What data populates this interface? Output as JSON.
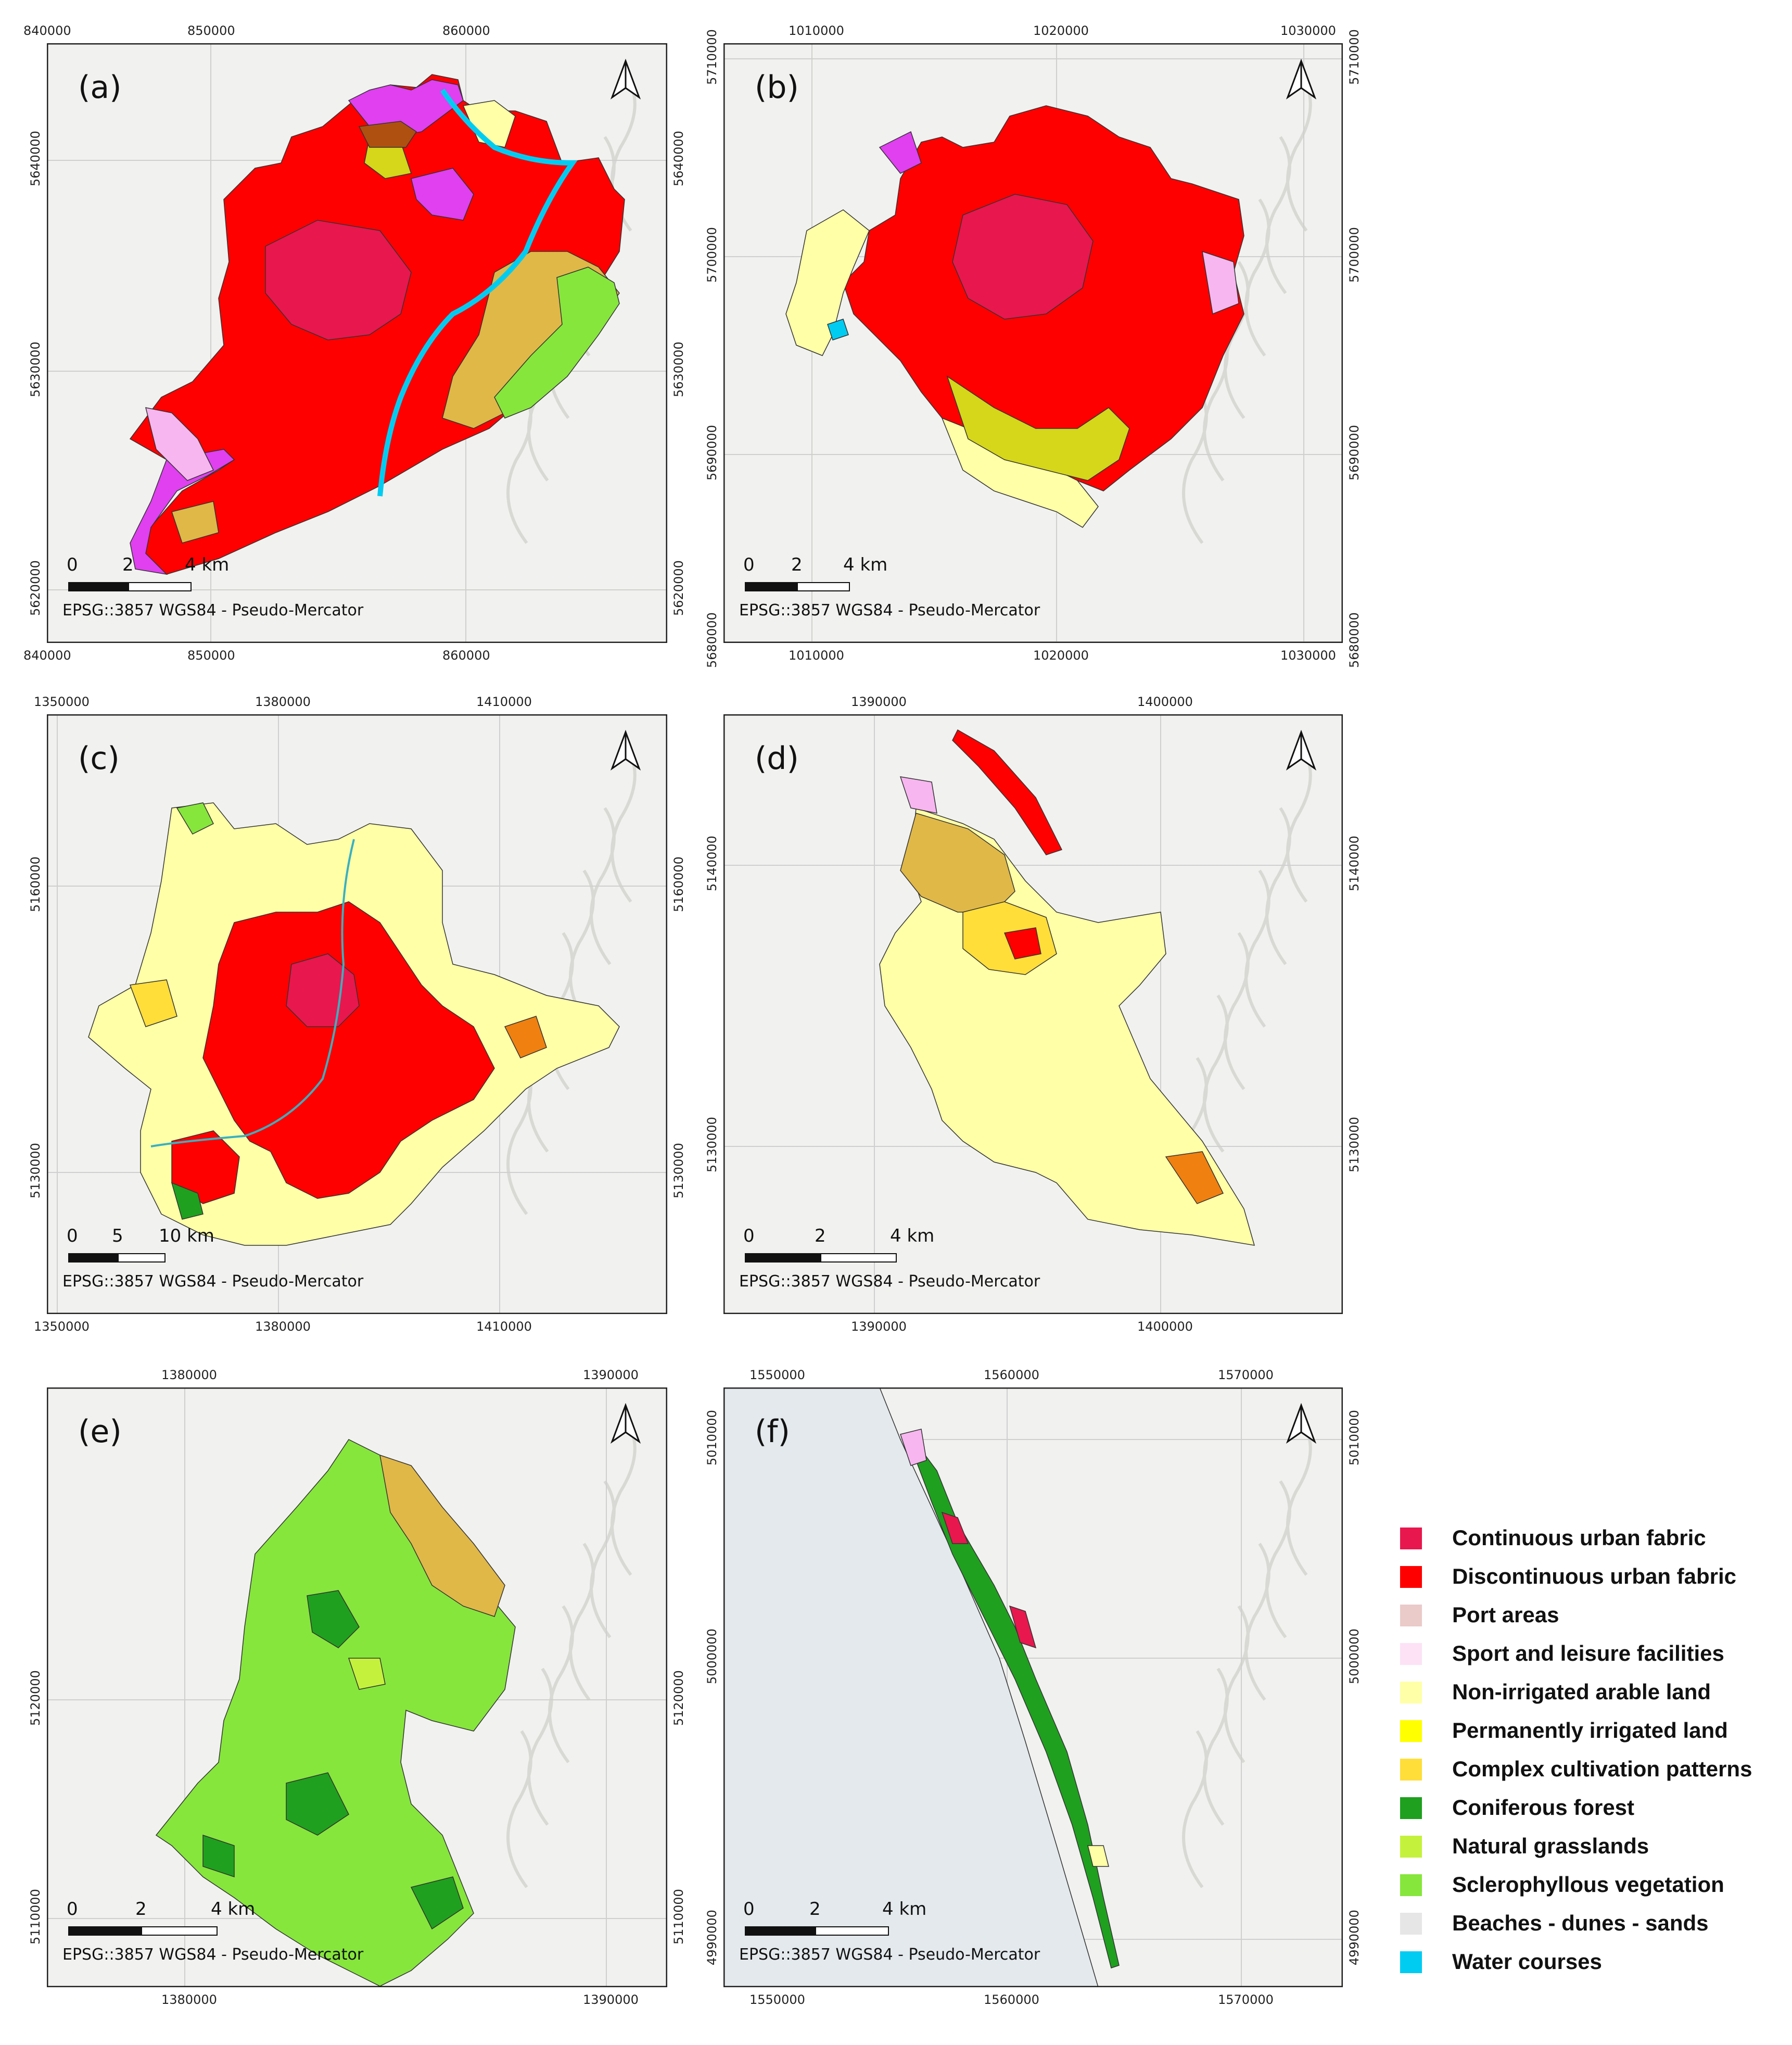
{
  "panels": [
    {
      "label": "(a)",
      "crs": "EPSG::3857 WGS84 - Pseudo-Mercator",
      "x_ticks": [
        "840000",
        "850000",
        "860000"
      ],
      "y_ticks": [
        "5640000",
        "5630000",
        "5620000"
      ],
      "scale": {
        "s0": "0",
        "s1": "2",
        "s2": "4 km"
      }
    },
    {
      "label": "(b)",
      "crs": "EPSG::3857 WGS84 - Pseudo-Mercator",
      "x_ticks": [
        "1010000",
        "1020000",
        "1030000"
      ],
      "y_ticks": [
        "5710000",
        "5700000",
        "5690000",
        "5680000"
      ],
      "scale": {
        "s0": "0",
        "s1": "2",
        "s2": "4 km"
      }
    },
    {
      "label": "(c)",
      "crs": "EPSG::3857 WGS84 - Pseudo-Mercator",
      "x_ticks": [
        "1350000",
        "1380000",
        "1410000"
      ],
      "y_ticks": [
        "5160000",
        "5130000"
      ],
      "scale": {
        "s0": "0",
        "s1": "5",
        "s2": "10 km"
      }
    },
    {
      "label": "(d)",
      "crs": "EPSG::3857 WGS84 - Pseudo-Mercator",
      "x_ticks": [
        "1390000",
        "1400000"
      ],
      "y_ticks": [
        "5140000",
        "5130000"
      ],
      "scale": {
        "s0": "0",
        "s1": "2",
        "s2": "4 km"
      }
    },
    {
      "label": "(e)",
      "crs": "EPSG::3857 WGS84 - Pseudo-Mercator",
      "x_ticks": [
        "1380000",
        "1390000"
      ],
      "y_ticks": [
        "5120000",
        "5110000"
      ],
      "scale": {
        "s0": "0",
        "s1": "2",
        "s2": "4 km"
      }
    },
    {
      "label": "(f)",
      "crs": "EPSG::3857 WGS84 - Pseudo-Mercator",
      "x_ticks": [
        "1550000",
        "1560000",
        "1570000"
      ],
      "y_ticks": [
        "5010000",
        "5000000",
        "4990000"
      ],
      "scale": {
        "s0": "0",
        "s1": "2",
        "s2": "4 km"
      }
    }
  ],
  "legend": [
    {
      "label": "Continuous urban fabric",
      "color": "#e8174e"
    },
    {
      "label": "Discontinuous urban fabric",
      "color": "#ff0000"
    },
    {
      "label": "Port areas",
      "color": "#ebcaca"
    },
    {
      "label": "Sport and leisure facilities",
      "color": "#fde2f6"
    },
    {
      "label": "Non-irrigated arable land",
      "color": "#ffffa8"
    },
    {
      "label": "Permanently irrigated land",
      "color": "#ffff00"
    },
    {
      "label": "Complex cultivation patterns",
      "color": "#ffde3a"
    },
    {
      "label": "Coniferous forest",
      "color": "#1fa01f"
    },
    {
      "label": "Natural grasslands",
      "color": "#c4f23c"
    },
    {
      "label": "Sclerophyllous vegetation",
      "color": "#86e63c"
    },
    {
      "label": "Beaches - dunes - sands",
      "color": "#e6e6e6"
    },
    {
      "label": "Water courses",
      "color": "#00ccf2"
    }
  ],
  "colors": {
    "urban_cont": "#e8174e",
    "urban_disc": "#ff0000",
    "magenta": "#e040f0",
    "arable": "#ffffa8",
    "complex": "#ffde3a",
    "forest": "#1fa01f",
    "grass": "#c4f23c",
    "scler": "#86e63c",
    "water": "#00ccf2",
    "olive": "#d6d61a",
    "orange": "#f08010",
    "tan": "#e0b848",
    "brown": "#b05010",
    "pink": "#f7b6f0",
    "sea": "#e3e9ec",
    "base": "#f1f1ef"
  }
}
